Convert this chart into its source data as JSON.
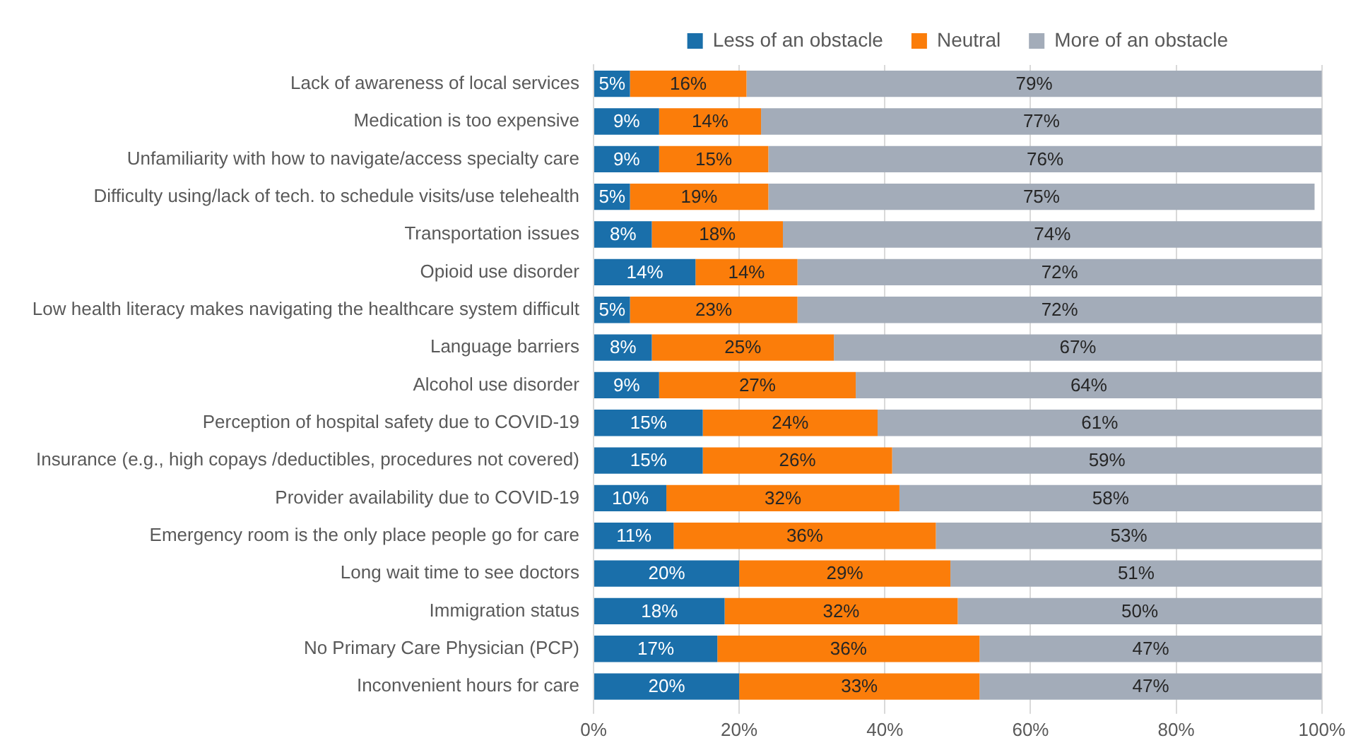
{
  "chart_data": {
    "type": "bar",
    "orientation": "horizontal",
    "stacked": true,
    "categories": [
      "Lack of awareness of local services",
      "Medication is too expensive",
      "Unfamiliarity with how to navigate/access specialty care",
      "Difficulty using/lack of tech. to schedule visits/use telehealth",
      "Transportation issues",
      "Opioid use disorder",
      "Low health literacy makes navigating the healthcare system difficult",
      "Language barriers",
      "Alcohol use disorder",
      "Perception of hospital safety due to COVID-19",
      "Insurance (e.g., high copays /deductibles, procedures not covered)",
      "Provider availability due to COVID-19",
      "Emergency room is the only place people go for care",
      "Long wait time to see doctors",
      "Immigration status",
      "No Primary Care Physician (PCP)",
      "Inconvenient hours for care"
    ],
    "series": [
      {
        "name": "Less of an obstacle",
        "color": "#1a6faa",
        "values": [
          5,
          9,
          9,
          5,
          8,
          14,
          5,
          8,
          9,
          15,
          15,
          10,
          11,
          20,
          18,
          17,
          20
        ],
        "value_labels": [
          "5%",
          "9%",
          "9%",
          "5%",
          "8%",
          "14%",
          "5%",
          "8%",
          "9%",
          "15%",
          "15%",
          "10%",
          "11%",
          "20%",
          "18%",
          "17%",
          "20%"
        ]
      },
      {
        "name": "Neutral",
        "color": "#fb7d0a",
        "values": [
          16,
          14,
          15,
          19,
          18,
          14,
          23,
          25,
          27,
          24,
          26,
          32,
          36,
          29,
          32,
          36,
          33
        ],
        "value_labels": [
          "16%",
          "14%",
          "15%",
          "19%",
          "18%",
          "14%",
          "23%",
          "25%",
          "27%",
          "24%",
          "26%",
          "32%",
          "36%",
          "29%",
          "32%",
          "36%",
          "33%"
        ]
      },
      {
        "name": "More of an obstacle",
        "color": "#a3acb9",
        "values": [
          79,
          77,
          76,
          75,
          74,
          72,
          72,
          67,
          64,
          61,
          59,
          58,
          53,
          51,
          50,
          47,
          47
        ],
        "value_labels": [
          "79%",
          "77%",
          "76%",
          "75%",
          "74%",
          "72%",
          "72%",
          "67%",
          "64%",
          "61%",
          "59%",
          "58%",
          "53%",
          "51%",
          "50%",
          "47%",
          "47%"
        ]
      }
    ],
    "xlim": [
      0,
      100
    ],
    "xticks": [
      {
        "value": 0,
        "label": "0%"
      },
      {
        "value": 20,
        "label": "20%"
      },
      {
        "value": 40,
        "label": "40%"
      },
      {
        "value": 60,
        "label": "60%"
      },
      {
        "value": 80,
        "label": "80%"
      },
      {
        "value": 100,
        "label": "100%"
      }
    ],
    "grid": "x",
    "legend": "top"
  }
}
